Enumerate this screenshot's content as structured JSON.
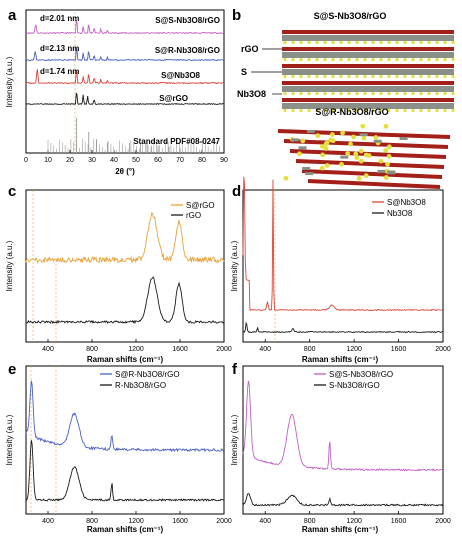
{
  "panels": {
    "a": {
      "letter": "a",
      "chart_data": {
        "type": "line",
        "xlabel": "2θ (°)",
        "ylabel": "Intensity (a.u.)",
        "xlim": [
          0,
          90
        ],
        "xticks": [
          0,
          10,
          20,
          30,
          40,
          50,
          60,
          70,
          80,
          90
        ],
        "series": [
          {
            "name": "S@S-Nb3O8/rGO",
            "color": "#c45ec6",
            "dspacing": "d=2.01 nm"
          },
          {
            "name": "S@R-Nb3O8/rGO",
            "color": "#4a5fc2",
            "dspacing": "d=2.13 nm"
          },
          {
            "name": "S@Nb3O8",
            "color": "#e0443a",
            "dspacing": "d=1.74 nm"
          },
          {
            "name": "S@rGO",
            "color": "#1a1a1a"
          },
          {
            "name": "Standard PDF#08-0247",
            "color": "#9a9a9a"
          }
        ]
      }
    },
    "b": {
      "letter": "b",
      "title_top": "S@S-Nb3O8/rGO",
      "title_bottom": "S@R-Nb3O8/rGO",
      "labels": [
        "rGO",
        "S",
        "Nb3O8"
      ]
    },
    "c": {
      "letter": "c",
      "chart_data": {
        "type": "line",
        "xlabel": "Raman shifts (cm⁻¹)",
        "ylabel": "Intensity (a.u.)",
        "xlim": [
          200,
          2000
        ],
        "xticks": [
          400,
          800,
          1200,
          1600,
          2000
        ],
        "series": [
          {
            "name": "S@rGO",
            "color": "#e8a33a"
          },
          {
            "name": "rGO",
            "color": "#1a1a1a"
          }
        ]
      }
    },
    "d": {
      "letter": "d",
      "chart_data": {
        "type": "line",
        "xlabel": "Raman shifts (cm⁻¹)",
        "ylabel": "Intensity (a.u.)",
        "xlim": [
          200,
          2000
        ],
        "xticks": [
          400,
          800,
          1200,
          1600,
          2000
        ],
        "series": [
          {
            "name": "S@Nb3O8",
            "color": "#e0443a"
          },
          {
            "name": "Nb3O8",
            "color": "#1a1a1a"
          }
        ]
      }
    },
    "e": {
      "letter": "e",
      "chart_data": {
        "type": "line",
        "xlabel": "Raman shifts (cm⁻¹)",
        "ylabel": "Intensity (a.u.)",
        "xlim": [
          200,
          2000
        ],
        "xticks": [
          400,
          800,
          1200,
          1600,
          2000
        ],
        "series": [
          {
            "name": "S@R-Nb3O8/rGO",
            "color": "#4a5fc2"
          },
          {
            "name": "R-Nb3O8/rGO",
            "color": "#1a1a1a"
          }
        ]
      }
    },
    "f": {
      "letter": "f",
      "chart_data": {
        "type": "line",
        "xlabel": "Raman shifts (cm⁻¹)",
        "ylabel": "Intensity (a.u.)",
        "xlim": [
          200,
          2000
        ],
        "xticks": [
          400,
          800,
          1200,
          1600,
          2000
        ],
        "series": [
          {
            "name": "S@S-Nb3O8/rGO",
            "color": "#c45ec6"
          },
          {
            "name": "S-Nb3O8/rGO",
            "color": "#1a1a1a"
          }
        ]
      }
    }
  }
}
